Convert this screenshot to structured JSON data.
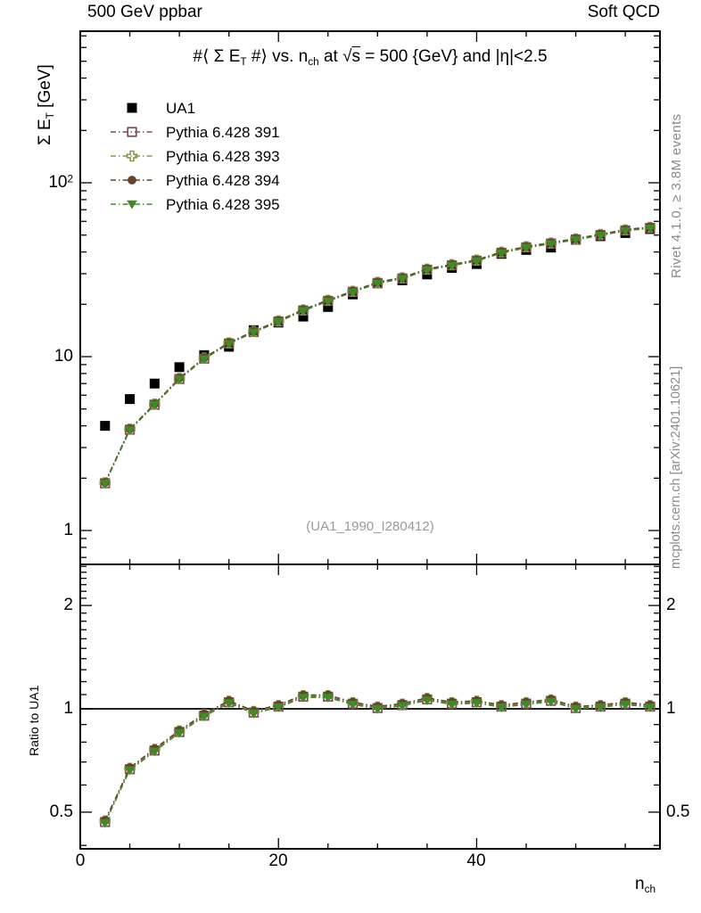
{
  "header": {
    "left": "500 GeV ppbar",
    "right": "Soft QCD"
  },
  "title": {
    "p1": "#⟨ Σ E",
    "s1": "T",
    "p2": " #⟩ vs. n",
    "s2": "ch",
    "p3": " at √",
    "ovl": "s",
    "p4": " = 500 {GeV} and |η|<2.5"
  },
  "axes": {
    "y_label": {
      "p1": "Σ E",
      "sub": "T",
      "p2": " [GeV]"
    },
    "ratio_label": "Ratio to UA1",
    "x_label": {
      "p1": "n",
      "sub": "ch"
    },
    "x_tick_labels": [
      "0",
      "20",
      "40"
    ],
    "y_tick_labels": [
      {
        "base": "10",
        "sup": "2"
      },
      {
        "base": "10"
      },
      {
        "base": "1"
      }
    ],
    "ratio_tick_labels": [
      "2",
      "1",
      "0.5"
    ]
  },
  "watermark": "(UA1_1990_I280412)",
  "side_notes": {
    "top": "Rivet 4.1.0, ≥ 3.8M events",
    "bottom": "mcplots.cern.ch [arXiv:2401.10621]"
  },
  "chart_data": {
    "type": "scatter",
    "title": "#⟨ Σ E_T #⟩ vs. n_ch at √s = 500 {GeV} and |η|<2.5",
    "xlabel": "n_ch",
    "ylabel": "Σ E_T [GeV]",
    "ratio_ylabel": "Ratio to UA1",
    "x_range": [
      0,
      58.5
    ],
    "y_log_range": [
      0.64,
      740
    ],
    "ratio_log_range": [
      0.39,
      2.64
    ],
    "x_ticks_major": [
      0,
      20,
      40
    ],
    "x_ticks_minor": [
      5,
      10,
      15,
      25,
      30,
      35,
      45,
      50,
      55
    ],
    "y_ticks_major": [
      1,
      10,
      100
    ],
    "y_ticks_minor": [
      0.7,
      0.8,
      0.9,
      2,
      3,
      4,
      5,
      6,
      7,
      8,
      9,
      20,
      30,
      40,
      50,
      60,
      70,
      80,
      90,
      200,
      300,
      400,
      500,
      600,
      700
    ],
    "ratio_ticks_major": [
      0.5,
      1,
      2
    ],
    "ratio_ticks_minor": [
      0.4,
      0.6,
      0.7,
      0.8,
      0.9,
      1.1,
      1.2,
      1.3,
      1.4,
      1.5,
      1.6,
      1.7,
      1.8,
      1.9,
      2.1,
      2.2,
      2.3,
      2.4,
      2.5,
      2.6
    ],
    "ratio_reference": 1,
    "legend_position": "top-left-inside",
    "grid": false,
    "x": [
      2.5,
      5,
      7.5,
      10,
      12.5,
      15,
      17.5,
      20,
      22.5,
      25,
      27.5,
      30,
      32.5,
      35,
      37.5,
      40,
      42.5,
      45,
      47.5,
      50,
      52.5,
      55,
      57.5
    ],
    "series": [
      {
        "name": "UA1",
        "marker": "square-filled",
        "color": "#000000",
        "line": "none",
        "values": [
          4.0,
          5.7,
          7.0,
          8.7,
          10.2,
          11.4,
          14.2,
          15.7,
          17.0,
          19.3,
          22.8,
          26.4,
          27.5,
          29.7,
          32.4,
          34.1,
          39.0,
          41.1,
          42.4,
          47.0,
          49.3,
          51.4,
          54.2
        ]
      },
      {
        "name": "Pythia 6.428 391",
        "marker": "square-open",
        "color": "#7e4a5c",
        "line": "dashdot",
        "values": [
          1.87,
          3.8,
          5.29,
          7.44,
          9.74,
          11.91,
          13.85,
          15.93,
          18.44,
          20.93,
          23.59,
          26.53,
          28.19,
          31.62,
          33.53,
          35.63,
          39.58,
          42.53,
          44.72,
          47.23,
          50.04,
          53.19,
          55.0
        ],
        "ratio": [
          0.468,
          0.667,
          0.756,
          0.856,
          0.955,
          1.045,
          0.975,
          1.015,
          1.085,
          1.085,
          1.035,
          1.005,
          1.025,
          1.065,
          1.035,
          1.045,
          1.015,
          1.035,
          1.055,
          1.005,
          1.015,
          1.035,
          1.015
        ]
      },
      {
        "name": "Pythia 6.428 393",
        "marker": "cross-open",
        "color": "#8f9148",
        "line": "dashdot",
        "values": [
          1.88,
          3.83,
          5.33,
          7.49,
          9.81,
          11.99,
          13.95,
          16.04,
          18.57,
          21.08,
          23.76,
          26.71,
          28.39,
          31.84,
          33.77,
          35.88,
          39.86,
          42.83,
          45.03,
          47.56,
          50.39,
          53.57,
          55.39
        ],
        "ratio": [
          0.471,
          0.671,
          0.762,
          0.862,
          0.962,
          1.052,
          0.982,
          1.022,
          1.092,
          1.092,
          1.042,
          1.012,
          1.032,
          1.072,
          1.042,
          1.052,
          1.022,
          1.042,
          1.062,
          1.012,
          1.022,
          1.042,
          1.022
        ]
      },
      {
        "name": "Pythia 6.428 394",
        "marker": "circle-filled",
        "color": "#64452a",
        "line": "dashdot",
        "values": [
          1.89,
          3.84,
          5.35,
          7.52,
          9.85,
          12.04,
          14.0,
          16.11,
          18.64,
          21.17,
          23.85,
          26.82,
          28.5,
          31.97,
          33.9,
          36.02,
          40.02,
          43.0,
          45.21,
          47.75,
          50.59,
          53.78,
          55.61
        ],
        "ratio": [
          0.473,
          0.674,
          0.765,
          0.865,
          0.966,
          1.056,
          0.986,
          1.026,
          1.097,
          1.097,
          1.046,
          1.016,
          1.036,
          1.076,
          1.046,
          1.056,
          1.026,
          1.046,
          1.066,
          1.016,
          1.026,
          1.046,
          1.026
        ]
      },
      {
        "name": "Pythia 6.428 395",
        "marker": "triangle-down-filled",
        "color": "#3f8b28",
        "line": "dashdot",
        "values": [
          1.86,
          3.78,
          5.27,
          7.41,
          9.69,
          11.85,
          13.78,
          15.85,
          18.34,
          20.83,
          23.47,
          26.39,
          28.05,
          31.46,
          33.36,
          35.45,
          39.38,
          42.31,
          44.49,
          46.99,
          49.79,
          52.93,
          54.73
        ],
        "ratio": [
          0.465,
          0.663,
          0.752,
          0.851,
          0.95,
          1.04,
          0.97,
          1.01,
          1.079,
          1.079,
          1.03,
          1.0,
          1.02,
          1.059,
          1.03,
          1.04,
          1.01,
          1.03,
          1.049,
          1.0,
          1.01,
          1.03,
          1.01
        ]
      }
    ]
  }
}
